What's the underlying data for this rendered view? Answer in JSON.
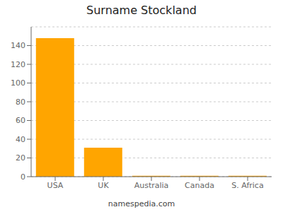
{
  "chart_data": {
    "type": "bar",
    "title": "Surname Stockland",
    "categories": [
      "USA",
      "UK",
      "Australia",
      "Canada",
      "S. Africa"
    ],
    "values": [
      148,
      31,
      1,
      1,
      1
    ],
    "color": "#FFA500",
    "ylim": [
      0,
      160
    ],
    "yticks": [
      0,
      20,
      40,
      60,
      80,
      100,
      120,
      140
    ],
    "grid": true,
    "annotation": "namespedia.com"
  }
}
